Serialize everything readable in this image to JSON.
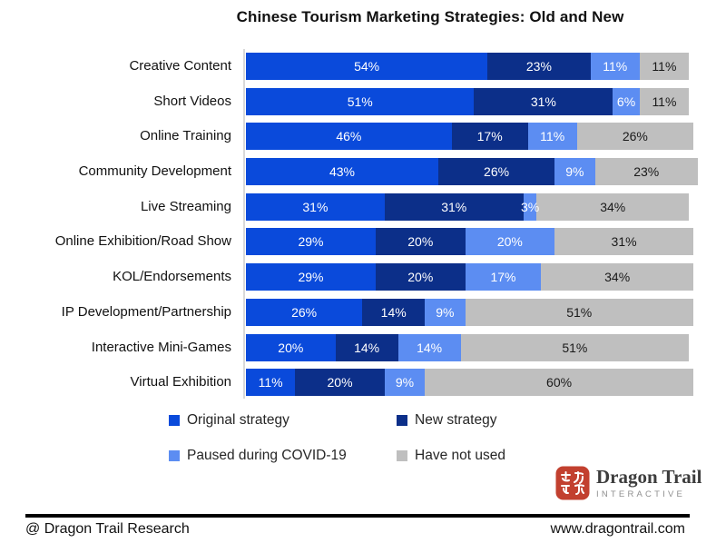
{
  "title": "Chinese Tourism Marketing Strategies: Old and New",
  "chart_data": {
    "type": "bar",
    "orientation": "horizontal-stacked",
    "value_suffix": "%",
    "xlim": [
      0,
      100
    ],
    "grid": false,
    "legend_position": "bottom",
    "categories": [
      "Creative Content",
      "Short Videos",
      "Online Training",
      "Community Development",
      "Live Streaming",
      "Online Exhibition/Road Show",
      "KOL/Endorsements",
      "IP Development/Partnership",
      "Interactive Mini-Games",
      "Virtual Exhibition"
    ],
    "series": [
      {
        "key": "original-strategy",
        "name": "Original strategy",
        "color": "#0a4adb",
        "label_color": "#ffffff",
        "values": [
          54,
          51,
          46,
          43,
          31,
          29,
          29,
          26,
          20,
          11
        ]
      },
      {
        "key": "new-strategy",
        "name": "New strategy",
        "color": "#0c2f89",
        "label_color": "#ffffff",
        "values": [
          23,
          31,
          17,
          26,
          31,
          20,
          20,
          14,
          14,
          20
        ]
      },
      {
        "key": "paused-during-covid-19",
        "name": "Paused during COVID-19",
        "color": "#5c8df2",
        "label_color": "#ffffff",
        "values": [
          11,
          6,
          11,
          9,
          3,
          20,
          17,
          9,
          14,
          9
        ]
      },
      {
        "key": "have-not-used",
        "name": "Have not used",
        "color": "#bfbfbf",
        "label_color": "#1a1a1a",
        "values": [
          11,
          11,
          26,
          23,
          34,
          31,
          34,
          51,
          51,
          60
        ]
      }
    ]
  },
  "legend": {
    "items": [
      {
        "label": "Original strategy",
        "color": "#0a4adb"
      },
      {
        "label": "New strategy",
        "color": "#0c2f89"
      },
      {
        "label": "Paused during COVID-19",
        "color": "#5c8df2"
      },
      {
        "label": "Have not used",
        "color": "#bfbfbf"
      }
    ]
  },
  "branding": {
    "seal_icon": "dragon-trail-seal-icon",
    "seal_color": "#c2402f",
    "name": "Dragon Trail",
    "subtext": "INTERACTIVE"
  },
  "footer": {
    "left": "@ Dragon Trail Research",
    "right": "www.dragontrail.com"
  }
}
